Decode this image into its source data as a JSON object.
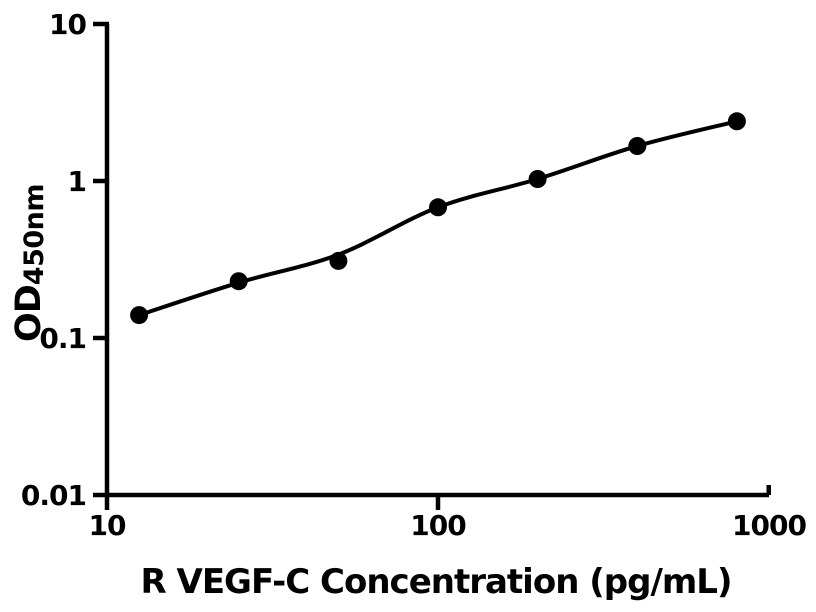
{
  "figure": {
    "background_color": "#ffffff",
    "ink_color": "#000000"
  },
  "chart_data": {
    "type": "scatter",
    "title": "",
    "xlabel": "R VEGF-C Concentration (pg/mL)",
    "ylabel_main": "OD",
    "ylabel_sub": "450nm",
    "x_scale": "log",
    "y_scale": "log",
    "xlim": [
      10,
      1000
    ],
    "ylim": [
      0.01,
      10
    ],
    "x_ticks": {
      "values": [
        10,
        100,
        1000
      ],
      "labels": [
        "10",
        "100",
        "1000"
      ]
    },
    "y_ticks": {
      "values": [
        10,
        1,
        0.1,
        0.01
      ],
      "labels": [
        "10",
        "1",
        "0.1",
        "0.01"
      ]
    },
    "grid": false,
    "legend": false,
    "series": [
      {
        "name": "standard-curve-points",
        "marker": "circle",
        "marker_color": "#000000",
        "x": [
          12.5,
          25,
          50,
          100,
          200,
          400,
          800
        ],
        "y": [
          0.14,
          0.23,
          0.31,
          0.68,
          1.03,
          1.67,
          2.4
        ]
      }
    ],
    "fit_curve": {
      "name": "four-parameter-fit-line",
      "line_color": "#000000",
      "x": [
        12.5,
        25,
        50,
        100,
        200,
        400,
        800
      ],
      "y": [
        0.14,
        0.225,
        0.34,
        0.68,
        1.03,
        1.67,
        2.4
      ]
    }
  }
}
